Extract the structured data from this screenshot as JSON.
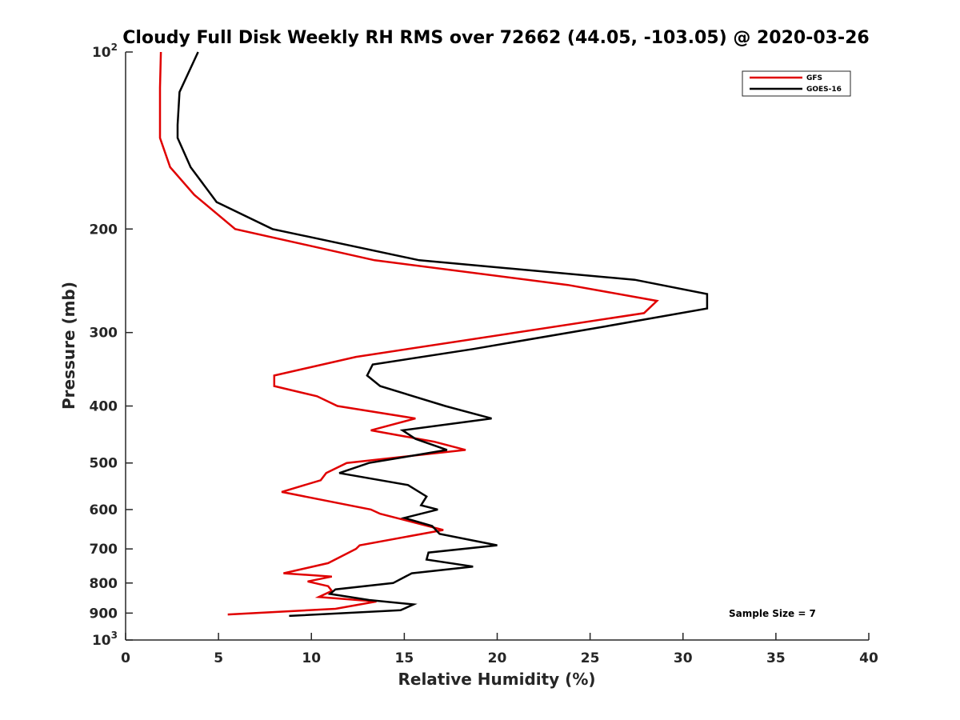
{
  "chart_data": {
    "type": "line",
    "title": "Cloudy Full Disk Weekly RH RMS over 72662 (44.05, -103.05) @ 2020-03-26",
    "xlabel": "Relative Humidity (%)",
    "ylabel": "Pressure (mb)",
    "xlim": [
      0,
      40
    ],
    "ylim": [
      100,
      1000
    ],
    "yscale": "log",
    "yreverse": true,
    "grid": false,
    "legend_position": "top-right",
    "x_ticks": [
      "0",
      "5",
      "10",
      "15",
      "20",
      "25",
      "30",
      "35",
      "40"
    ],
    "x_tick_values": [
      0,
      5,
      10,
      15,
      20,
      25,
      30,
      35,
      40
    ],
    "y_ticks": [
      {
        "value": 100,
        "base": "10",
        "exp": "2"
      },
      {
        "value": 200,
        "label": "200"
      },
      {
        "value": 300,
        "label": "300"
      },
      {
        "value": 400,
        "label": "400"
      },
      {
        "value": 500,
        "label": "500"
      },
      {
        "value": 600,
        "label": "600"
      },
      {
        "value": 700,
        "label": "700"
      },
      {
        "value": 800,
        "label": "800"
      },
      {
        "value": 900,
        "label": "900"
      },
      {
        "value": 1000,
        "base": "10",
        "exp": "3"
      }
    ],
    "series": [
      {
        "name": "GFS",
        "color": "#e00000",
        "points": [
          [
            1.9,
            100
          ],
          [
            1.85,
            115
          ],
          [
            1.85,
            133
          ],
          [
            1.85,
            140
          ],
          [
            2.4,
            157
          ],
          [
            3.7,
            175
          ],
          [
            5.9,
            200
          ],
          [
            13.4,
            226
          ],
          [
            23.8,
            249
          ],
          [
            28.6,
            265
          ],
          [
            27.9,
            278
          ],
          [
            12.4,
            330
          ],
          [
            8.0,
            355
          ],
          [
            8.0,
            370
          ],
          [
            10.3,
            385
          ],
          [
            11.4,
            400
          ],
          [
            15.6,
            420
          ],
          [
            13.2,
            440
          ],
          [
            16.6,
            460
          ],
          [
            18.3,
            475
          ],
          [
            11.9,
            500
          ],
          [
            10.8,
            520
          ],
          [
            10.5,
            535
          ],
          [
            8.4,
            560
          ],
          [
            13.2,
            600
          ],
          [
            13.7,
            610
          ],
          [
            17.1,
            650
          ],
          [
            12.6,
            690
          ],
          [
            12.4,
            700
          ],
          [
            10.9,
            740
          ],
          [
            8.5,
            770
          ],
          [
            11.1,
            780
          ],
          [
            9.8,
            795
          ],
          [
            10.9,
            810
          ],
          [
            11.1,
            825
          ],
          [
            10.4,
            845
          ],
          [
            13.5,
            860
          ],
          [
            11.3,
            885
          ],
          [
            5.5,
            905
          ]
        ]
      },
      {
        "name": "GOES-16",
        "color": "#000000",
        "points": [
          [
            3.9,
            100
          ],
          [
            2.9,
            117
          ],
          [
            2.8,
            133
          ],
          [
            2.8,
            140
          ],
          [
            3.5,
            157
          ],
          [
            4.9,
            180
          ],
          [
            7.9,
            200
          ],
          [
            15.8,
            226
          ],
          [
            27.4,
            244
          ],
          [
            31.3,
            258
          ],
          [
            31.3,
            273
          ],
          [
            25.8,
            293
          ],
          [
            18.7,
            320
          ],
          [
            13.3,
            340
          ],
          [
            13.0,
            355
          ],
          [
            13.7,
            370
          ],
          [
            17.2,
            400
          ],
          [
            19.7,
            420
          ],
          [
            14.9,
            440
          ],
          [
            15.6,
            455
          ],
          [
            17.3,
            475
          ],
          [
            13.1,
            500
          ],
          [
            11.5,
            520
          ],
          [
            15.2,
            545
          ],
          [
            16.2,
            570
          ],
          [
            15.9,
            590
          ],
          [
            16.8,
            600
          ],
          [
            15.0,
            620
          ],
          [
            16.5,
            640
          ],
          [
            16.9,
            660
          ],
          [
            20.0,
            690
          ],
          [
            16.3,
            710
          ],
          [
            16.2,
            730
          ],
          [
            18.7,
            750
          ],
          [
            15.4,
            770
          ],
          [
            14.4,
            800
          ],
          [
            11.3,
            820
          ],
          [
            11.0,
            835
          ],
          [
            13.1,
            855
          ],
          [
            15.5,
            870
          ],
          [
            14.8,
            890
          ],
          [
            8.8,
            910
          ]
        ]
      }
    ],
    "annotation": "Sample Size = 7"
  }
}
